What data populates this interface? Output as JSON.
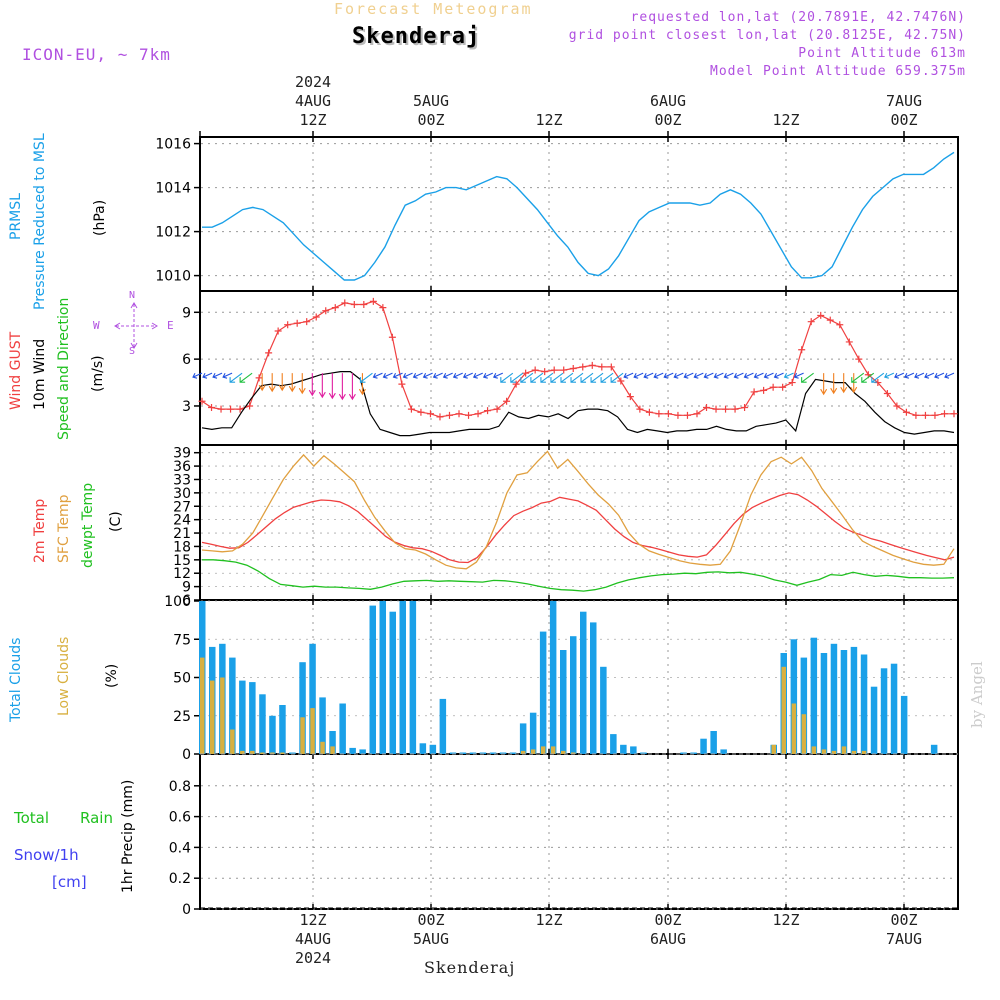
{
  "header": {
    "title": "Forecast Meteogram",
    "location": "Skenderaj",
    "model": "ICON-EU, ~ 7km",
    "requested": "requested lon,lat (20.7891E, 42.7476N)",
    "gridpoint": "grid point closest lon,lat (20.8125E, 42.75N)",
    "altitude": "Point Altitude 613m",
    "model_altitude": "Model Point Altitude 659.375m"
  },
  "footer": {
    "location": "Skenderaj",
    "credit": "by Angel"
  },
  "time_axis": {
    "top": [
      {
        "line1": "2024",
        "line2": "4AUG",
        "line3": "12Z"
      },
      {
        "line1": "",
        "line2": "5AUG",
        "line3": "00Z"
      },
      {
        "line1": "",
        "line2": "",
        "line3": "12Z"
      },
      {
        "line1": "",
        "line2": "6AUG",
        "line3": "00Z"
      },
      {
        "line1": "",
        "line2": "",
        "line3": "12Z"
      },
      {
        "line1": "",
        "line2": "7AUG",
        "line3": "00Z"
      }
    ],
    "bottom": [
      {
        "line1": "12Z",
        "line2": "4AUG",
        "line3": "2024"
      },
      {
        "line1": "00Z",
        "line2": "5AUG",
        "line3": ""
      },
      {
        "line1": "12Z",
        "line2": "",
        "line3": ""
      },
      {
        "line1": "00Z",
        "line2": "6AUG",
        "line3": ""
      },
      {
        "line1": "12Z",
        "line2": "",
        "line3": ""
      },
      {
        "line1": "00Z",
        "line2": "7AUG",
        "line3": ""
      }
    ]
  },
  "panel_labels": {
    "pressure": {
      "a": "PRMSL",
      "b": "Pressure Reduced to MSL",
      "unit": "(hPa)"
    },
    "wind": {
      "a": "Wind GUST",
      "b": "10m Wind",
      "c": "Speed and Direction",
      "unit": "(m/s)"
    },
    "compass": {
      "n": "N",
      "s": "S",
      "w": "W",
      "e": "E"
    },
    "temp": {
      "a": "2m Temp",
      "b": "SFC Temp",
      "c": "dewpt Temp",
      "unit": "(C)"
    },
    "cloud": {
      "a": "Total Clouds",
      "b": "Low Clouds",
      "unit": "(%)"
    },
    "precip": {
      "a": "Total",
      "b": "Rain",
      "c": "Snow/1h",
      "d": "[cm]",
      "unit": "1hr Precip (mm)"
    }
  },
  "colors": {
    "pressure": "#1aa0e8",
    "gust": "#f04040",
    "wind": "#000000",
    "temp2m": "#f04040",
    "sfc": "#e0a040",
    "dewpt": "#20c020",
    "total_clouds": "#1aa0e8",
    "low_clouds": "#d8b040",
    "rain": "#20c020",
    "snow": "#4040f0",
    "label_purple": "#b050e0"
  },
  "chart_data": [
    {
      "type": "line",
      "name": "PRMSL",
      "x_hours_start": "2024-08-04 03Z",
      "x_step_hours": 1,
      "ylim": [
        1009.3,
        1016.3
      ],
      "yticks": [
        1010,
        1012,
        1014,
        1016
      ],
      "series": [
        {
          "name": "PRMSL",
          "values": [
            1012.2,
            1012.2,
            1012.4,
            1012.7,
            1013.0,
            1013.1,
            1013.0,
            1012.7,
            1012.4,
            1011.9,
            1011.4,
            1011.0,
            1010.6,
            1010.2,
            1009.8,
            1009.8,
            1010.0,
            1010.6,
            1011.3,
            1012.3,
            1013.2,
            1013.4,
            1013.7,
            1013.8,
            1014.0,
            1014.0,
            1013.9,
            1014.1,
            1014.3,
            1014.5,
            1014.4,
            1014.0,
            1013.5,
            1013.0,
            1012.4,
            1011.8,
            1011.3,
            1010.6,
            1010.1,
            1010.0,
            1010.3,
            1010.9,
            1011.7,
            1012.5,
            1012.9,
            1013.1,
            1013.3,
            1013.3,
            1013.3,
            1013.2,
            1013.3,
            1013.7,
            1013.9,
            1013.7,
            1013.3,
            1012.8,
            1012.0,
            1011.2,
            1010.4,
            1009.9,
            1009.9,
            1010.0,
            1010.4,
            1011.3,
            1012.2,
            1013.0,
            1013.6,
            1014.0,
            1014.4,
            1014.6,
            1014.6,
            1014.6,
            1014.9,
            1015.3,
            1015.6
          ]
        }
      ]
    },
    {
      "type": "line",
      "name": "Wind",
      "ylim": [
        0.5,
        10.3
      ],
      "yticks": [
        3,
        6,
        9
      ],
      "series": [
        {
          "name": "Wind GUST",
          "values": [
            3.3,
            2.9,
            2.8,
            2.8,
            2.8,
            3.0,
            4.8,
            6.4,
            7.8,
            8.2,
            8.3,
            8.4,
            8.7,
            9.1,
            9.3,
            9.6,
            9.5,
            9.5,
            9.7,
            9.3,
            7.4,
            4.4,
            2.8,
            2.6,
            2.5,
            2.3,
            2.4,
            2.5,
            2.4,
            2.5,
            2.7,
            2.8,
            3.3,
            4.4,
            5.1,
            5.3,
            5.2,
            5.3,
            5.3,
            5.4,
            5.5,
            5.6,
            5.5,
            5.5,
            4.6,
            3.6,
            2.8,
            2.6,
            2.5,
            2.5,
            2.4,
            2.4,
            2.5,
            2.9,
            2.8,
            2.8,
            2.8,
            2.9,
            3.9,
            4.0,
            4.2,
            4.2,
            4.5,
            6.6,
            8.4,
            8.8,
            8.5,
            8.2,
            7.1,
            6.0,
            5.0,
            4.5,
            3.8,
            3.0,
            2.6,
            2.4,
            2.4,
            2.4,
            2.5,
            2.5
          ]
        },
        {
          "name": "10m Wind",
          "values": [
            1.6,
            1.5,
            1.6,
            1.6,
            2.6,
            3.5,
            4.3,
            4.4,
            4.3,
            4.4,
            4.6,
            4.8,
            5.0,
            5.1,
            5.2,
            5.2,
            4.7,
            2.5,
            1.5,
            1.3,
            1.1,
            1.1,
            1.2,
            1.3,
            1.3,
            1.3,
            1.4,
            1.5,
            1.5,
            1.5,
            1.7,
            2.6,
            2.3,
            2.2,
            2.4,
            2.3,
            2.5,
            2.2,
            2.7,
            2.8,
            2.8,
            2.7,
            2.3,
            1.5,
            1.3,
            1.5,
            1.4,
            1.3,
            1.4,
            1.4,
            1.5,
            1.5,
            1.7,
            1.5,
            1.4,
            1.4,
            1.7,
            1.8,
            1.9,
            2.1,
            1.4,
            3.8,
            4.7,
            4.6,
            4.5,
            4.5,
            3.8,
            3.3,
            2.6,
            2.0,
            1.6,
            1.3,
            1.2,
            1.3,
            1.4,
            1.4,
            1.3
          ]
        }
      ]
    },
    {
      "type": "line",
      "name": "Temperature",
      "ylim": [
        6,
        40.5
      ],
      "yticks": [
        6,
        9,
        12,
        15,
        18,
        21,
        24,
        27,
        30,
        33,
        36,
        39
      ],
      "series": [
        {
          "name": "2m Temp",
          "values": [
            18.9,
            18.5,
            18.0,
            17.6,
            17.7,
            18.9,
            20.6,
            22.4,
            24.2,
            25.6,
            26.8,
            27.4,
            28.0,
            28.4,
            28.3,
            28.0,
            27.1,
            25.8,
            24.0,
            22.2,
            20.3,
            19.0,
            18.2,
            17.7,
            17.5,
            16.9,
            16.0,
            15.0,
            14.5,
            14.4,
            15.5,
            17.8,
            20.5,
            22.8,
            24.9,
            25.9,
            26.7,
            27.7,
            28.1,
            29.0,
            28.6,
            28.2,
            27.2,
            26.1,
            24.0,
            21.9,
            20.2,
            18.9,
            18.2,
            17.8,
            17.3,
            16.7,
            16.1,
            15.8,
            15.6,
            16.1,
            18.2,
            20.6,
            23.1,
            25.2,
            26.7,
            27.7,
            28.6,
            29.4,
            30.0,
            29.6,
            28.4,
            27.0,
            25.3,
            23.6,
            22.1,
            21.2,
            20.5,
            19.7,
            19.2,
            18.5,
            17.8,
            17.2,
            16.6,
            16.0,
            15.5,
            15.0,
            15.6
          ]
        },
        {
          "name": "SFC Temp",
          "values": [
            17.2,
            17.0,
            16.8,
            17.0,
            18.5,
            21.0,
            25.0,
            29.0,
            33.0,
            36.0,
            38.5,
            36.0,
            38.3,
            36.5,
            34.5,
            32.5,
            28.3,
            24.5,
            21.5,
            18.8,
            17.5,
            17.2,
            16.3,
            15.0,
            13.8,
            13.2,
            13.0,
            14.5,
            18.0,
            23.5,
            30.0,
            34.0,
            34.5,
            37.0,
            39.3,
            35.5,
            37.5,
            34.8,
            32.0,
            29.5,
            27.5,
            25.0,
            21.0,
            18.5,
            17.0,
            16.2,
            15.5,
            14.8,
            14.3,
            14.0,
            13.8,
            14.0,
            17.0,
            23.0,
            29.5,
            34.0,
            37.0,
            38.0,
            36.5,
            38.0,
            35.0,
            31.0,
            28.0,
            25.0,
            21.8,
            19.2,
            18.0,
            17.0,
            16.0,
            15.2,
            14.5,
            14.0,
            13.8,
            14.0,
            17.5
          ]
        },
        {
          "name": "dewpt Temp",
          "values": [
            15.0,
            15.0,
            14.8,
            14.5,
            13.8,
            12.5,
            10.8,
            9.5,
            9.2,
            8.9,
            9.1,
            8.9,
            8.9,
            8.7,
            8.6,
            8.4,
            8.9,
            9.6,
            10.2,
            10.3,
            10.4,
            10.2,
            10.3,
            10.2,
            10.1,
            10.0,
            10.4,
            10.3,
            10.0,
            9.6,
            9.1,
            8.6,
            8.3,
            8.2,
            8.0,
            8.3,
            8.9,
            9.8,
            10.5,
            11.0,
            11.4,
            11.7,
            11.8,
            12.0,
            11.9,
            12.2,
            12.3,
            12.1,
            12.2,
            11.8,
            11.3,
            10.5,
            10.0,
            9.3,
            10.0,
            10.6,
            11.7,
            11.5,
            12.2,
            11.7,
            11.3,
            11.5,
            11.3,
            11.0,
            11.0,
            10.9,
            10.9,
            11.0
          ]
        }
      ]
    },
    {
      "type": "bar",
      "name": "Clouds",
      "ylim": [
        0,
        100
      ],
      "yticks": [
        0,
        25,
        50,
        75,
        100
      ],
      "series": [
        {
          "name": "Total Clouds",
          "values": [
            100,
            70,
            72,
            63,
            48,
            47,
            39,
            25,
            32,
            1,
            60,
            72,
            37,
            15,
            33,
            4,
            3,
            97,
            100,
            93,
            100,
            100,
            7,
            6,
            36,
            1,
            1,
            1,
            1,
            1,
            1,
            1,
            20,
            27,
            80,
            100,
            68,
            77,
            93,
            86,
            57,
            13,
            6,
            5,
            1,
            0,
            0,
            0,
            1,
            1,
            10,
            15,
            3,
            0,
            0,
            0,
            0,
            6,
            66,
            75,
            63,
            76,
            66,
            72,
            68,
            70,
            65,
            44,
            56,
            59,
            38,
            0,
            0,
            6,
            0,
            0
          ]
        },
        {
          "name": "Low Clouds",
          "values": [
            63,
            48,
            50,
            16,
            2,
            2,
            1,
            1,
            1,
            0,
            24,
            30,
            8,
            5,
            0,
            0,
            0,
            0,
            0,
            0,
            0,
            0,
            0,
            0,
            0,
            0,
            0,
            0,
            0,
            0,
            0,
            0,
            2,
            3,
            5,
            5,
            2,
            1,
            0,
            0,
            0,
            0,
            0,
            0,
            0,
            0,
            0,
            0,
            0,
            0,
            0,
            0,
            0,
            0,
            0,
            0,
            0,
            6,
            57,
            33,
            26,
            5,
            3,
            2,
            5,
            2,
            2,
            0,
            0,
            0,
            0,
            0,
            0,
            0,
            0,
            0
          ]
        }
      ]
    },
    {
      "type": "bar",
      "name": "Precipitation",
      "ylim": [
        0,
        1
      ],
      "yticks": [
        0,
        0.2,
        0.4,
        0.6,
        0.8
      ],
      "series": [
        {
          "name": "Total Rain",
          "values": []
        }
      ]
    }
  ]
}
